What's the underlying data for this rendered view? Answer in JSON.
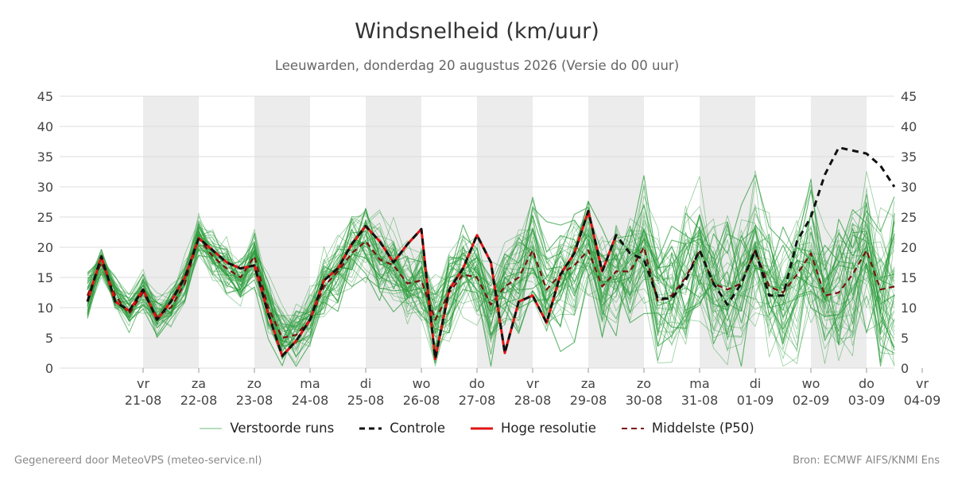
{
  "header": {
    "title": "Windsnelheid (km/uur)",
    "subtitle": "Leeuwarden, donderdag 20 augustus 2026 (Versie do 00 uur)"
  },
  "footer": {
    "left": "Gegenereerd door MeteoVPS (meteo-service.nl)",
    "right": "Bron: ECMWF AIFS/KNMI Ens"
  },
  "colors": {
    "ensemble": "#2e9e3e",
    "control": "#111111",
    "high_res": "#e01414",
    "median": "#7a1010",
    "weekend_band": "#ececec",
    "grid": "#dddddd"
  },
  "chart_data": {
    "type": "line",
    "title": "Windsnelheid (km/uur)",
    "ylim": [
      0,
      45
    ],
    "yticks": [
      0,
      5,
      10,
      15,
      20,
      25,
      30,
      35,
      40,
      45
    ],
    "x_range_days": [
      -0.5,
      14.5
    ],
    "weekend_bands": [
      [
        1.0,
        2.0
      ],
      [
        3.0,
        4.0
      ],
      [
        5.0,
        6.0
      ],
      [
        7.0,
        8.0
      ],
      [
        9.0,
        10.0
      ],
      [
        11.0,
        12.0
      ],
      [
        13.0,
        14.0
      ]
    ],
    "grid": true,
    "legend_position": "bottom",
    "x_ticks": [
      {
        "day": 1,
        "weekday": "vr",
        "date": "21-08"
      },
      {
        "day": 2,
        "weekday": "za",
        "date": "22-08"
      },
      {
        "day": 3,
        "weekday": "zo",
        "date": "23-08"
      },
      {
        "day": 4,
        "weekday": "ma",
        "date": "24-08"
      },
      {
        "day": 5,
        "weekday": "di",
        "date": "25-08"
      },
      {
        "day": 6,
        "weekday": "wo",
        "date": "26-08"
      },
      {
        "day": 7,
        "weekday": "do",
        "date": "27-08"
      },
      {
        "day": 8,
        "weekday": "vr",
        "date": "28-08"
      },
      {
        "day": 9,
        "weekday": "za",
        "date": "29-08"
      },
      {
        "day": 10,
        "weekday": "zo",
        "date": "30-08"
      },
      {
        "day": 11,
        "weekday": "ma",
        "date": "31-08"
      },
      {
        "day": 12,
        "weekday": "di",
        "date": "01-09"
      },
      {
        "day": 13,
        "weekday": "wo",
        "date": "02-09"
      },
      {
        "day": 14,
        "weekday": "do",
        "date": "03-09"
      },
      {
        "day": 15,
        "weekday": "vr",
        "date": "04-09"
      }
    ],
    "legend": [
      {
        "key": "ensemble",
        "label": "Verstoorde runs"
      },
      {
        "key": "control",
        "label": "Controle"
      },
      {
        "key": "high_res",
        "label": "Hoge resolutie"
      },
      {
        "key": "median",
        "label": "Middelste (P50)"
      }
    ],
    "series": [
      {
        "key": "control",
        "name": "Controle",
        "x": [
          0,
          0.25,
          0.5,
          0.75,
          1,
          1.25,
          1.5,
          1.75,
          2,
          2.25,
          2.5,
          2.75,
          3,
          3.25,
          3.5,
          3.75,
          4,
          4.25,
          4.5,
          4.75,
          5,
          5.25,
          5.5,
          5.75,
          6,
          6.25,
          6.5,
          6.75,
          7,
          7.25,
          7.5,
          7.75,
          8,
          8.25,
          8.5,
          8.75,
          9,
          9.25,
          9.5,
          9.75,
          10,
          10.25,
          10.5,
          10.75,
          11,
          11.25,
          11.5,
          11.75,
          12,
          12.25,
          12.5,
          12.75,
          13,
          13.25,
          13.5,
          13.75,
          14,
          14.25,
          14.5
        ],
        "y": [
          11,
          18.5,
          11,
          9.5,
          13,
          8,
          11,
          15,
          21.5,
          19.5,
          17.5,
          16.5,
          17,
          9,
          2,
          4.5,
          8,
          14.5,
          16.5,
          20.5,
          23.5,
          21,
          17.5,
          20.5,
          23,
          1.5,
          13,
          16.5,
          22,
          17.5,
          2.5,
          11,
          12,
          7.5,
          15.5,
          19,
          26,
          16,
          22,
          19,
          18,
          11.5,
          11.5,
          14.5,
          19.5,
          14,
          10.5,
          14,
          19.5,
          12,
          12,
          21,
          25,
          32,
          36.5,
          36,
          35.5,
          33.5,
          30
        ]
      },
      {
        "key": "high_res",
        "name": "Hoge resolutie",
        "x": [
          0,
          0.25,
          0.5,
          0.75,
          1,
          1.25,
          1.5,
          1.75,
          2,
          2.25,
          2.5,
          2.75,
          3,
          3.25,
          3.5,
          3.75,
          4,
          4.25,
          4.5,
          4.75,
          5,
          5.25,
          5.5,
          5.75,
          6,
          6.25,
          6.5,
          6.75,
          7,
          7.25,
          7.5,
          7.75,
          8,
          8.25,
          8.5,
          8.75,
          9,
          9.25,
          9.5
        ],
        "y": [
          11,
          18.5,
          11,
          9.5,
          13,
          8,
          11,
          15,
          21.5,
          19.5,
          17.5,
          16.5,
          17,
          9,
          2,
          4.5,
          8,
          14.5,
          16.5,
          20.5,
          23.5,
          21,
          17.5,
          20.5,
          23,
          1.5,
          13,
          16.5,
          22,
          17.5,
          2.5,
          11,
          12,
          7.5,
          15.5,
          19,
          26,
          16,
          22
        ]
      },
      {
        "key": "median",
        "name": "Middelste (P50)",
        "x": [
          0,
          0.25,
          0.5,
          0.75,
          1,
          1.25,
          1.5,
          1.75,
          2,
          2.25,
          2.5,
          2.75,
          3,
          3.25,
          3.5,
          3.75,
          4,
          4.25,
          4.5,
          4.75,
          5,
          5.25,
          5.5,
          5.75,
          6,
          6.25,
          6.5,
          6.75,
          7,
          7.25,
          7.5,
          7.75,
          8,
          8.25,
          8.5,
          8.75,
          9,
          9.25,
          9.5,
          9.75,
          10,
          10.25,
          10.5,
          10.75,
          11,
          11.25,
          11.5,
          11.75,
          12,
          12.25,
          12.5,
          12.75,
          13,
          13.25,
          13.5,
          13.75,
          14,
          14.25,
          14.5
        ],
        "y": [
          12,
          17.5,
          12,
          9,
          12.5,
          8.5,
          10,
          14,
          21.5,
          18.5,
          16.5,
          15,
          18.5,
          10,
          5,
          5.5,
          8,
          13.5,
          16,
          19,
          21,
          18,
          17,
          14,
          14.5,
          8,
          12.5,
          15.5,
          15,
          10.5,
          13.5,
          15,
          19.5,
          13,
          15.5,
          17,
          19.5,
          13.5,
          16,
          16,
          20,
          11,
          12,
          15,
          19.5,
          14,
          13,
          14,
          19.5,
          13.5,
          12.5,
          15.5,
          19,
          12,
          12.5,
          15.5,
          19.5,
          13,
          13.5
        ]
      }
    ],
    "ensemble_members": 50
  }
}
